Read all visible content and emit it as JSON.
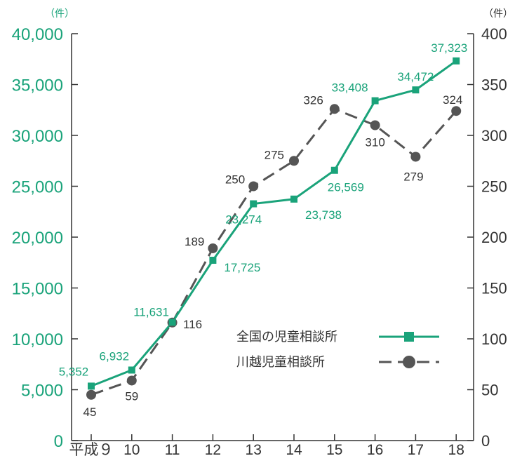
{
  "chart_data": {
    "type": "line",
    "categories": [
      "平成９",
      "10",
      "11",
      "12",
      "13",
      "14",
      "15",
      "16",
      "17",
      "18"
    ],
    "series": [
      {
        "name": "全国の児童相談所",
        "axis": "left",
        "values": [
          5352,
          6932,
          11631,
          17725,
          23274,
          23738,
          26569,
          33408,
          34472,
          37323
        ],
        "labels": [
          "5,352",
          "6,932",
          "11,631",
          "17,725",
          "23,274",
          "23,738",
          "26,569",
          "33,408",
          "34,472",
          "37,323"
        ],
        "color": "#1aa37a",
        "line_style": "solid",
        "marker": "square"
      },
      {
        "name": "川越児童相談所",
        "axis": "right",
        "values": [
          45,
          59,
          116,
          189,
          250,
          275,
          326,
          310,
          279,
          324
        ],
        "labels": [
          "45",
          "59",
          "116",
          "189",
          "250",
          "275",
          "326",
          "310",
          "279",
          "324"
        ],
        "color": "#555555",
        "line_style": "dashed",
        "marker": "circle"
      }
    ],
    "y_left": {
      "unit": "（件）",
      "ylim": [
        0,
        40000
      ],
      "ticks": [
        "0",
        "5,000",
        "10,000",
        "15,000",
        "20,000",
        "25,000",
        "30,000",
        "35,000",
        "40,000"
      ]
    },
    "y_right": {
      "unit": "（件）",
      "ylim": [
        0,
        400
      ],
      "ticks": [
        "0",
        "50",
        "100",
        "150",
        "200",
        "250",
        "300",
        "350",
        "400"
      ]
    },
    "grid": false,
    "legend_position": "lower-right"
  }
}
